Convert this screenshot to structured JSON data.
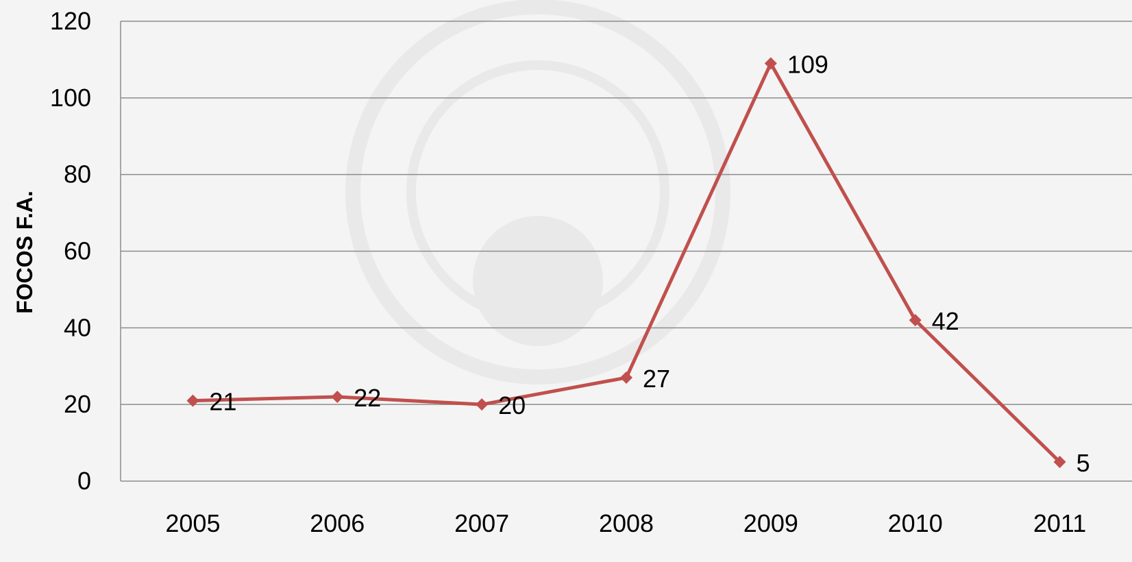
{
  "chart_data": {
    "type": "line",
    "title": "",
    "xlabel": "",
    "ylabel": "FOCOS F.A.",
    "categories": [
      "2005",
      "2006",
      "2007",
      "2008",
      "2009",
      "2010",
      "2011"
    ],
    "series": [
      {
        "values": [
          21,
          22,
          20,
          27,
          109,
          42,
          5
        ],
        "color": "#c0504d"
      }
    ],
    "data_labels": [
      "21",
      "22",
      "20",
      "27",
      "109",
      "42",
      "5"
    ],
    "y_ticks": [
      "0",
      "20",
      "40",
      "60",
      "80",
      "100",
      "120"
    ],
    "ylim": [
      0,
      120
    ],
    "grid": true,
    "legend": "none",
    "marker": "diamond"
  },
  "colors": {
    "background": "#f4f4f4",
    "gridline": "#8c8c8c",
    "series": "#c0504d",
    "watermark": "#e9e9e9"
  }
}
